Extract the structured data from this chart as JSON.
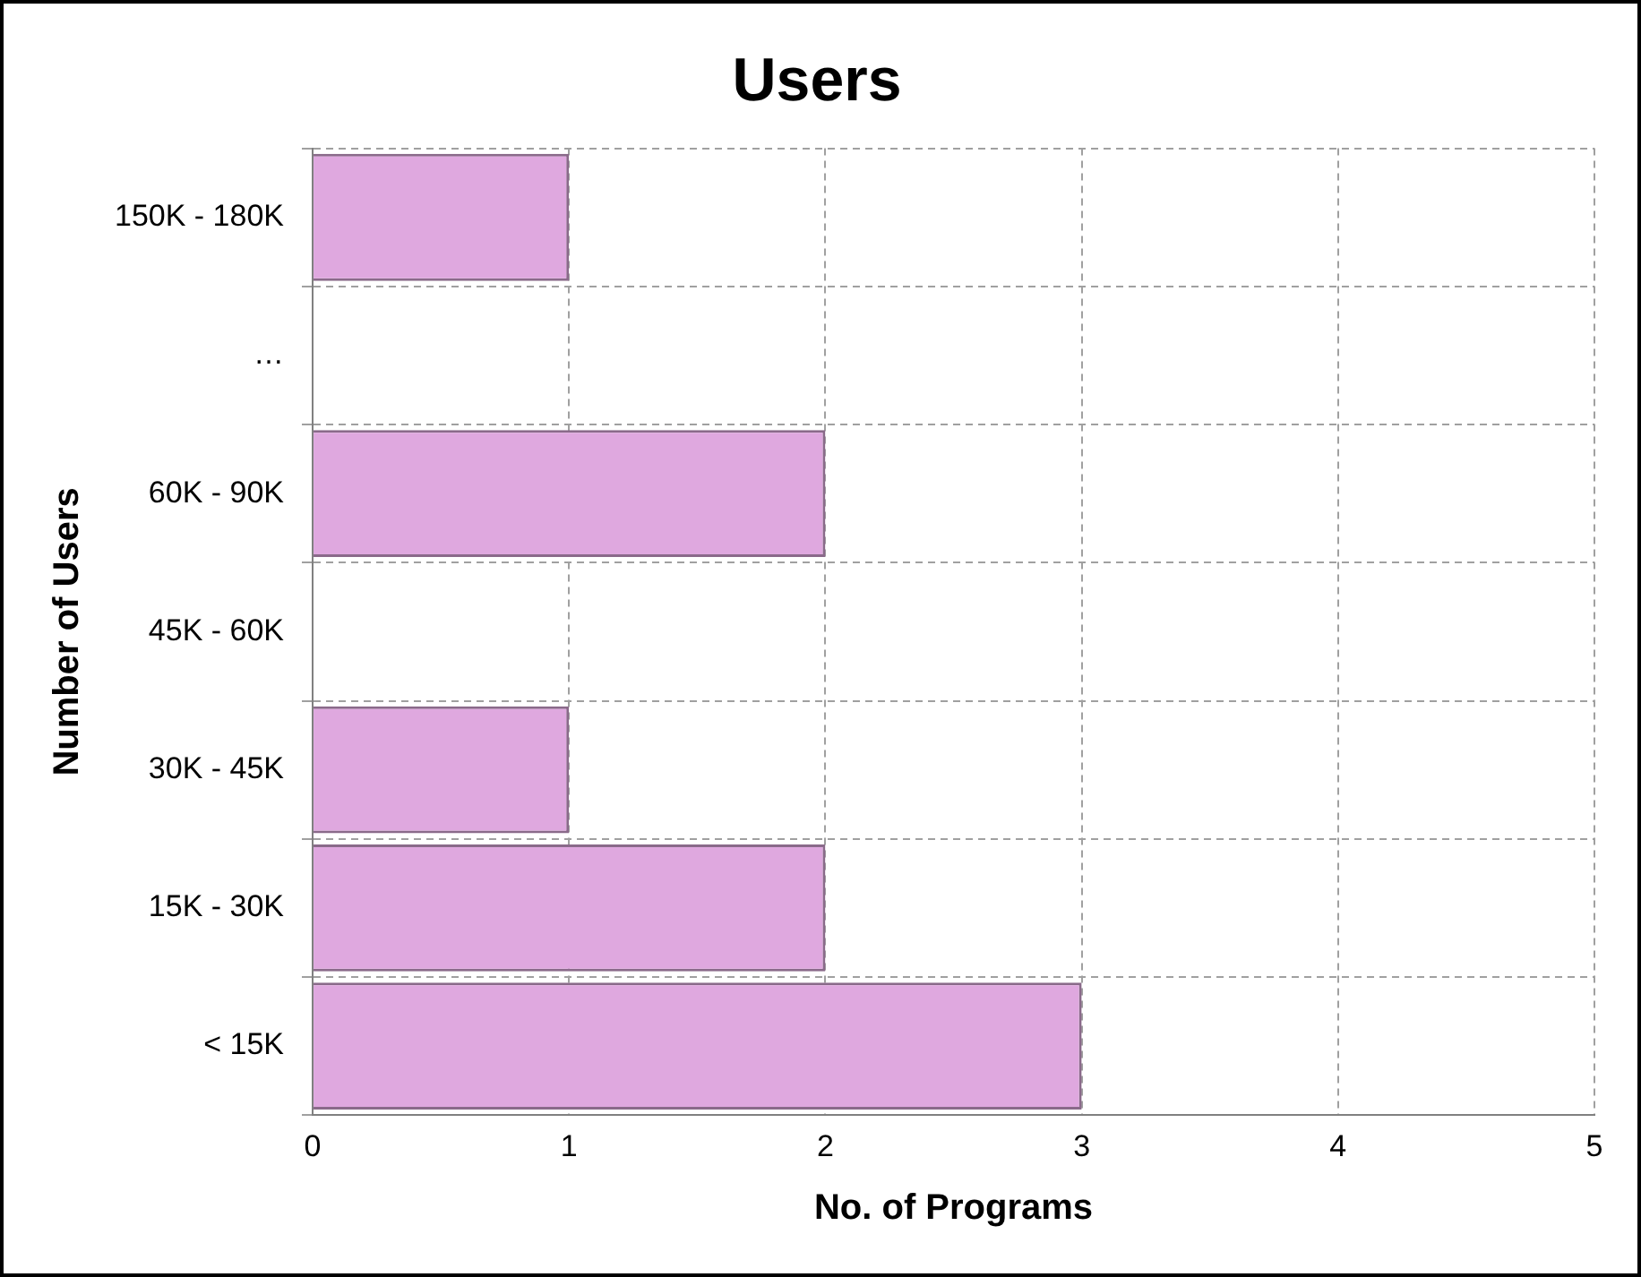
{
  "chart_data": {
    "type": "bar",
    "orientation": "horizontal",
    "title": "Users",
    "xlabel": "No. of Programs",
    "ylabel": "Number of Users",
    "categories": [
      "150K - 180K",
      "…",
      "60K - 90K",
      "45K - 60K",
      "30K - 45K",
      "15K - 30K",
      "< 15K"
    ],
    "values": [
      1,
      null,
      2,
      0,
      1,
      2,
      3
    ],
    "color": "#dfa8df",
    "xlim": [
      0,
      5
    ],
    "xticks": [
      0,
      1,
      2,
      3,
      4,
      5
    ],
    "grid": true,
    "legend": false
  }
}
